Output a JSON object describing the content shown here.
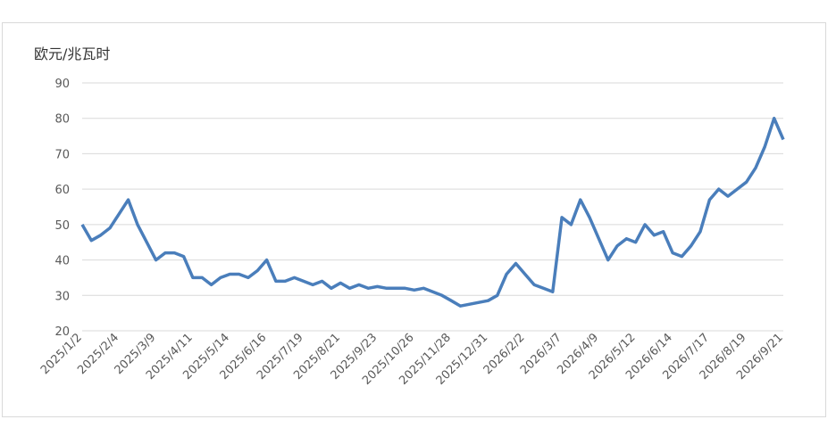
{
  "chart_data": {
    "type": "line",
    "y_label": "欧元/兆瓦时",
    "categories": [
      "2025/1/2",
      null,
      null,
      null,
      "2025/2/4",
      null,
      null,
      null,
      "2025/3/9",
      null,
      null,
      null,
      "2025/4/11",
      null,
      null,
      null,
      "2025/5/14",
      null,
      null,
      null,
      "2025/6/16",
      null,
      null,
      null,
      "2025/7/19",
      null,
      null,
      null,
      "2025/8/21",
      null,
      null,
      null,
      "2025/9/23",
      null,
      null,
      null,
      "2025/10/26",
      null,
      null,
      null,
      "2025/11/28",
      null,
      null,
      null,
      "2025/12/31",
      null,
      null,
      null,
      "2026/2/2",
      null,
      null,
      null,
      "2026/3/7",
      null,
      null,
      null,
      "2026/4/9",
      null,
      null,
      null,
      "2026/5/12",
      null,
      null,
      null,
      "2026/6/14",
      null,
      null,
      null,
      "2026/7/17",
      null,
      null,
      null,
      "2026/8/19",
      null,
      null,
      null,
      "2026/9/21"
    ],
    "values": [
      50,
      45.5,
      47,
      49,
      53,
      57,
      50,
      45,
      40,
      42,
      42,
      41,
      35,
      35,
      33,
      35,
      36,
      36,
      35,
      37,
      40,
      34,
      34,
      35,
      34,
      33,
      34,
      32,
      33.5,
      32,
      33,
      32,
      32.5,
      32,
      32,
      32,
      31.5,
      32,
      31,
      30,
      28.5,
      27,
      27.5,
      28,
      28.5,
      30,
      36,
      39,
      36,
      33,
      32,
      31,
      52,
      50,
      57,
      52,
      46,
      40,
      44,
      46,
      45,
      50,
      47,
      48,
      42,
      41,
      44,
      48,
      57,
      60,
      58,
      60,
      62,
      66,
      72,
      80,
      74
    ],
    "color": "#4a7ebb",
    "ylim": [
      20,
      90
    ],
    "yticks": [
      20,
      30,
      40,
      50,
      60,
      70,
      80,
      90
    ],
    "grid": true
  }
}
